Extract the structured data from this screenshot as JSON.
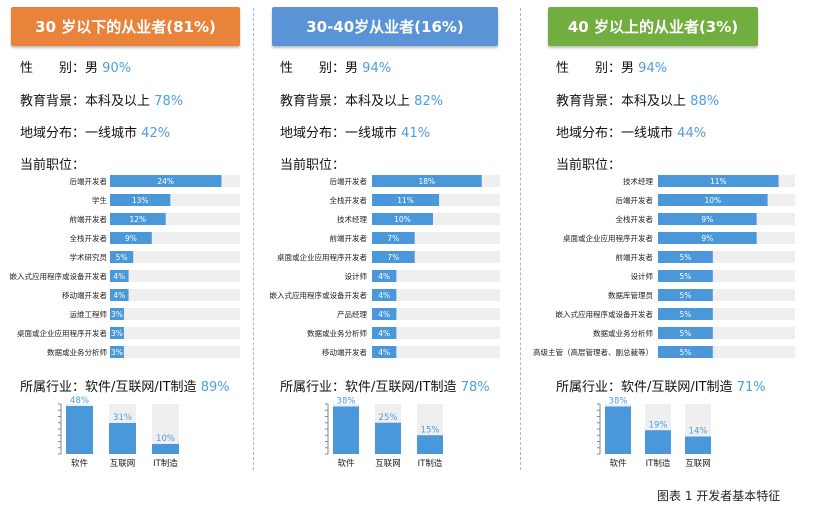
{
  "colors": {
    "bar": "#4a97d9",
    "track": "#efefef",
    "pct_text": "#4a9fe0",
    "divider": "#9bbcdc",
    "header_orange": "#e9823a",
    "header_blue": "#5a94d6",
    "header_green": "#72ae3f"
  },
  "panels": [
    {
      "title": "30 岁以下的从业者(81%)",
      "header_color": "#e9823a",
      "gender": {
        "label": "性　　别：",
        "value": "男",
        "pct": "90%"
      },
      "education": {
        "label": "教育背景：",
        "value": "本科及以上",
        "pct": "78%"
      },
      "region": {
        "label": "地域分布：",
        "value": "一线城市",
        "pct": "42%"
      },
      "jobs_title": "当前职位：",
      "industry": {
        "label": "所属行业：",
        "value": "软件/互联网/IT制造",
        "pct": "89%"
      }
    },
    {
      "title": "30-40岁从业者(16%)",
      "header_color": "#5a94d6",
      "gender": {
        "label": "性　　别：",
        "value": "男",
        "pct": "94%"
      },
      "education": {
        "label": "教育背景：",
        "value": "本科及以上",
        "pct": "82%"
      },
      "region": {
        "label": "地域分布：",
        "value": "一线城市",
        "pct": "41%"
      },
      "jobs_title": "当前职位：",
      "industry": {
        "label": "所属行业：",
        "value": "软件/互联网/IT制造",
        "pct": "78%"
      }
    },
    {
      "title": "40 岁以上的从业者(3%)",
      "header_color": "#72ae3f",
      "gender": {
        "label": "性　　别：",
        "value": "男",
        "pct": "94%"
      },
      "education": {
        "label": "教育背景：",
        "value": "本科及以上",
        "pct": "88%"
      },
      "region": {
        "label": "地域分布：",
        "value": "一线城市",
        "pct": "44%"
      },
      "jobs_title": "当前职位：",
      "industry": {
        "label": "所属行业：",
        "value": "软件/互联网/IT制造",
        "pct": "71%"
      }
    }
  ],
  "caption": "图表 1 开发者基本特征",
  "chart_data": [
    {
      "type": "bar",
      "orientation": "horizontal",
      "categories": [
        "后端开发者",
        "学生",
        "前端开发者",
        "全栈开发者",
        "学术研究员",
        "嵌入式应用程序或设备开发者",
        "移动端开发者",
        "运维工程师",
        "桌面或企业应用程序开发者",
        "数据或业务分析师"
      ],
      "values": [
        24,
        13,
        12,
        9,
        5,
        4,
        4,
        3,
        3,
        3
      ],
      "value_labels": [
        "24%",
        "13%",
        "12%",
        "9%",
        "5%",
        "4%",
        "4%",
        "3%",
        "3%",
        "3%"
      ],
      "xlim": [
        0,
        28
      ]
    },
    {
      "type": "bar",
      "orientation": "vertical",
      "categories": [
        "软件",
        "互联网",
        "IT制造"
      ],
      "values": [
        48,
        31,
        10
      ],
      "value_labels": [
        "48%",
        "31%",
        "10%"
      ],
      "ylim": [
        0,
        50
      ]
    },
    {
      "type": "bar",
      "orientation": "horizontal",
      "categories": [
        "后端开发者",
        "全栈开发者",
        "技术经理",
        "前端开发者",
        "桌面或企业应用程序开发者",
        "设计师",
        "嵌入式应用程序或设备开发者",
        "产品经理",
        "数据或业务分析师",
        "移动端开发者"
      ],
      "values": [
        18,
        11,
        10,
        7,
        7,
        4,
        4,
        4,
        4,
        4
      ],
      "value_labels": [
        "18%",
        "11%",
        "10%",
        "7%",
        "7%",
        "4%",
        "4%",
        "4%",
        "4%",
        "4%"
      ],
      "xlim": [
        0,
        21
      ]
    },
    {
      "type": "bar",
      "orientation": "vertical",
      "categories": [
        "软件",
        "互联网",
        "IT制造"
      ],
      "values": [
        38,
        25,
        15
      ],
      "value_labels": [
        "38%",
        "25%",
        "15%"
      ],
      "ylim": [
        0,
        40
      ]
    },
    {
      "type": "bar",
      "orientation": "horizontal",
      "categories": [
        "技术经理",
        "后端开发者",
        "全栈开发者",
        "桌面或企业应用程序开发者",
        "前端开发者",
        "设计师",
        "数据库管理员",
        "嵌入式应用程序或设备开发者",
        "数据或业务分析师",
        "高级主管（高层管理者、副总裁等）"
      ],
      "values": [
        11,
        10,
        9,
        9,
        5,
        5,
        5,
        5,
        5,
        5
      ],
      "value_labels": [
        "11%",
        "10%",
        "9%",
        "9%",
        "5%",
        "5%",
        "5%",
        "5%",
        "5%",
        "5%"
      ],
      "xlim": [
        0,
        12.5
      ]
    },
    {
      "type": "bar",
      "orientation": "vertical",
      "categories": [
        "软件",
        "IT制造",
        "互联网"
      ],
      "values": [
        38,
        19,
        14
      ],
      "value_labels": [
        "38%",
        "19%",
        "14%"
      ],
      "ylim": [
        0,
        40
      ]
    }
  ]
}
